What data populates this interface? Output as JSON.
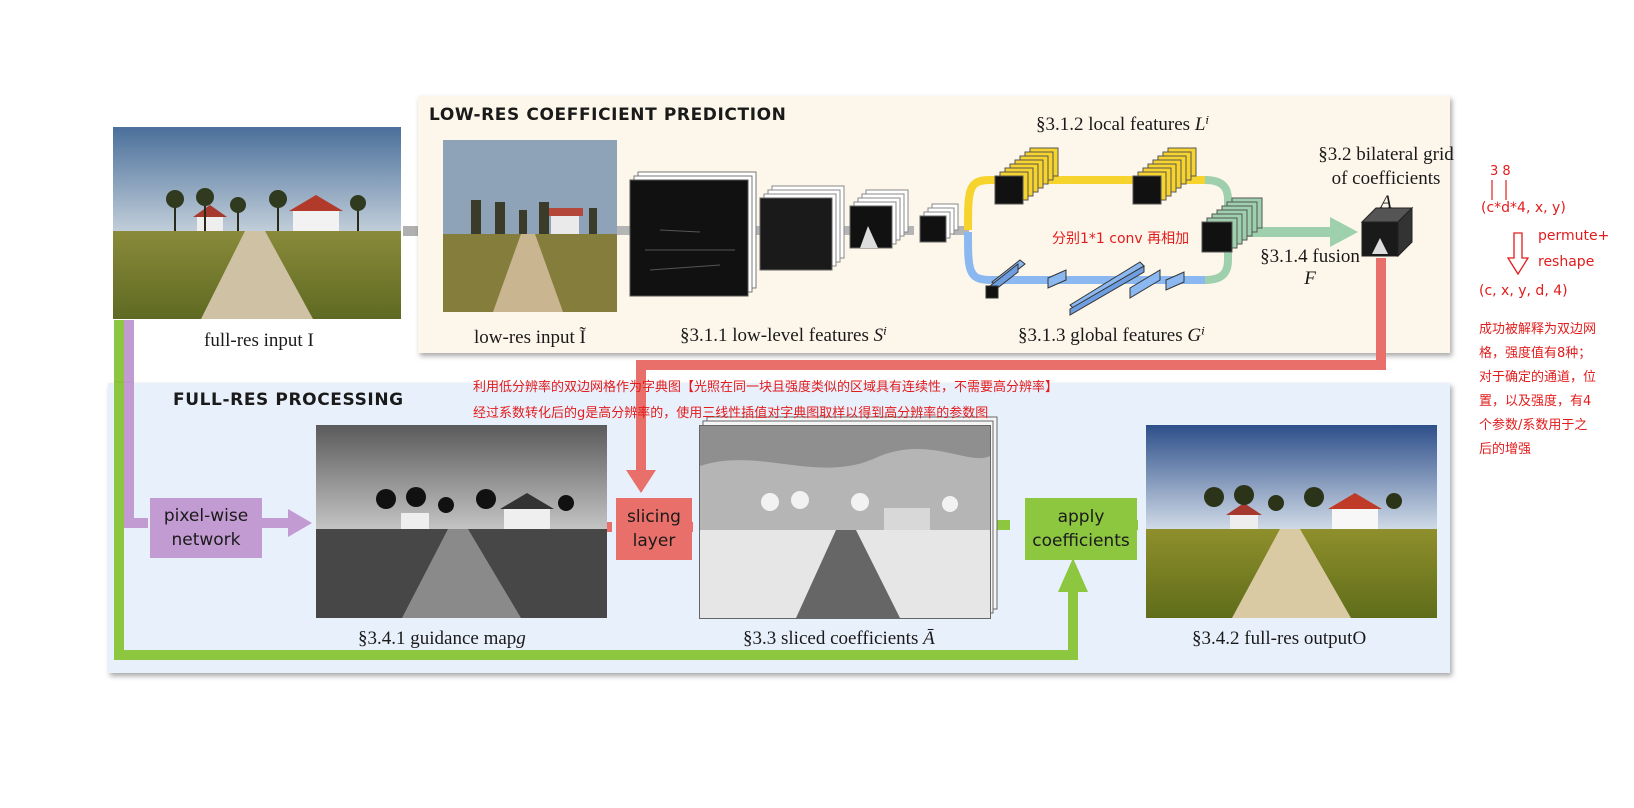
{
  "panels": {
    "low_res_title": "LOW-RES COEFFICIENT PREDICTION",
    "full_res_title": "FULL-RES PROCESSING"
  },
  "labels": {
    "full_res_input": "full-res input",
    "full_res_input_sym": "I",
    "low_res_input": "low-res input",
    "low_res_input_sym": "Ĩ",
    "low_level": "§3.1.1 low-level features",
    "low_level_sym": "Sⁱ",
    "local": "§3.1.2 local features",
    "local_sym": "Lⁱ",
    "global": "§3.1.3 global features",
    "global_sym": "Gⁱ",
    "grid_line1": "§3.2 bilateral grid",
    "grid_line2": "of coefficients",
    "grid_sym": "A",
    "fusion": "§3.1.4 fusion",
    "fusion_sym": "F",
    "guidance": "§3.4.1 guidance map",
    "guidance_sym": "g",
    "sliced": "§3.3 sliced coefficients",
    "sliced_sym": "Ā",
    "output": "§3.4.2 full-res output",
    "output_sym": "O"
  },
  "boxes": {
    "pixel_wise_line1": "pixel-wise",
    "pixel_wise_line2": "network",
    "slicing_line1": "slicing",
    "slicing_line2": "layer",
    "apply_line1": "apply",
    "apply_line2": "coefficients"
  },
  "annotations": {
    "conv_note": "分别1*1 conv 再相加",
    "dict_note_line1": "利用低分辨率的双边网格作为字典图【光照在同一块且强度类似的区域具有连续性，不需要高分辨率】",
    "dict_note_line2": "经过系数转化后的g是高分辨率的，使用三线性插值对字典图取样以得到高分辨率的参数图",
    "side_dims_top": "3   8",
    "side_shape_before": "(c*d*4, x, y)",
    "side_op_line1": "permute+",
    "side_op_line2": "reshape",
    "side_shape_after": "(c, x, y, d, 4)",
    "side_expl_line1": "成功被解释为双边网",
    "side_expl_line2": "格，强度值有8种；",
    "side_expl_line3": "对于确定的通道，位",
    "side_expl_line4": "置，以及强度，有4",
    "side_expl_line5": "个参数/系数用于之",
    "side_expl_line6": "后的增强"
  },
  "colors": {
    "low_panel_bg": "#fdf6ea",
    "full_panel_bg": "#e8f0fc",
    "purple": "#c39bd3",
    "green": "#8dc63f",
    "salmon": "#e9706a",
    "yellow": "#f6d32d",
    "blue": "#8bb8f0",
    "mint": "#9fd0ad",
    "gray_arrow": "#a9a9a9",
    "note_red": "#e21c1c"
  },
  "icons": {
    "photo": "landscape-photo-icon",
    "feature_stack": "feature-map-stack-icon",
    "grid_cube": "bilateral-grid-cube-icon"
  }
}
